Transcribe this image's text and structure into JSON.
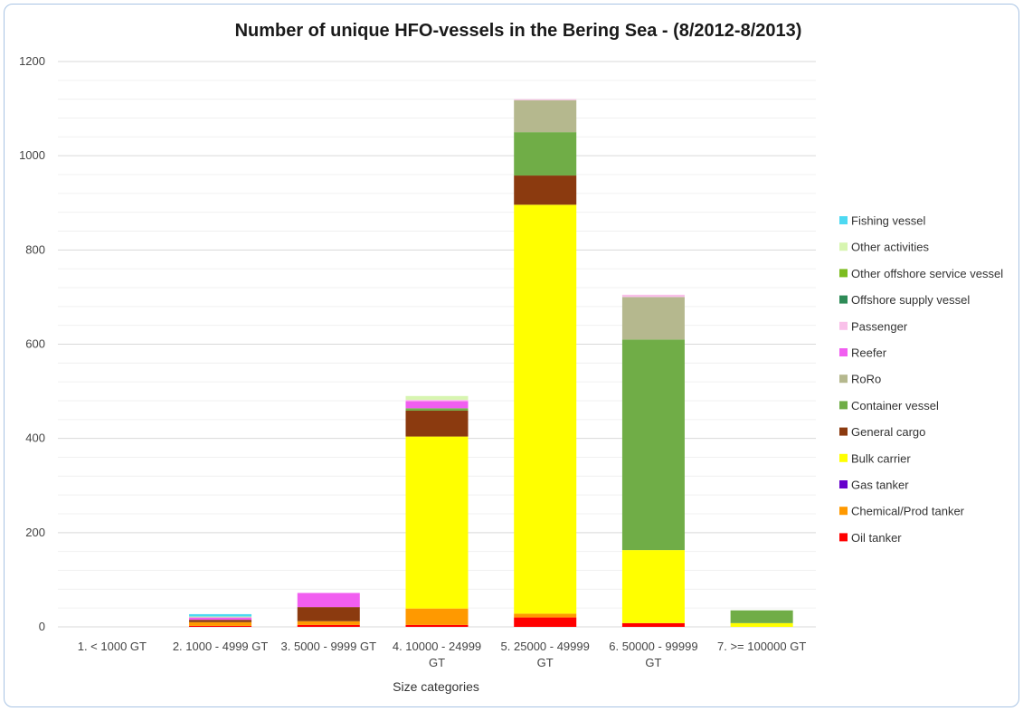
{
  "chart_data": {
    "type": "bar",
    "stacked": true,
    "title": "Number of unique HFO-vessels in the Bering Sea - (8/2012-8/2013)",
    "xlabel": "Size categories",
    "ylabel": "",
    "ylim": [
      0,
      1200
    ],
    "yticks": [
      0,
      200,
      400,
      600,
      800,
      1000,
      1200
    ],
    "grid": true,
    "legend_position": "right",
    "categories": [
      [
        "1. < 1000 GT"
      ],
      [
        "2. 1000 - 4999 GT"
      ],
      [
        "3. 5000 - 9999 GT"
      ],
      [
        "4. 10000 - 24999",
        "GT"
      ],
      [
        "5. 25000 - 49999",
        "GT"
      ],
      [
        "6. 50000 - 99999",
        "GT"
      ],
      [
        "7. >= 100000 GT"
      ]
    ],
    "series": [
      {
        "name": "Oil tanker",
        "color": "#ff0000",
        "values": [
          0,
          2,
          4,
          4,
          20,
          8,
          0
        ]
      },
      {
        "name": "Chemical/Prod tanker",
        "color": "#ff9900",
        "values": [
          0,
          8,
          8,
          35,
          8,
          0,
          0
        ]
      },
      {
        "name": "Gas tanker",
        "color": "#6600cc",
        "values": [
          0,
          0,
          0,
          0,
          0,
          0,
          0
        ]
      },
      {
        "name": "Bulk carrier",
        "color": "#ffff00",
        "values": [
          0,
          0,
          0,
          365,
          868,
          155,
          8
        ]
      },
      {
        "name": "General cargo",
        "color": "#8b3a0f",
        "values": [
          0,
          5,
          30,
          55,
          62,
          0,
          0
        ]
      },
      {
        "name": "Container vessel",
        "color": "#70ad47",
        "values": [
          0,
          0,
          0,
          5,
          92,
          447,
          27
        ]
      },
      {
        "name": "RoRo",
        "color": "#b5b88e",
        "values": [
          0,
          0,
          0,
          0,
          68,
          90,
          0
        ]
      },
      {
        "name": "Reefer",
        "color": "#f15ef0",
        "values": [
          0,
          5,
          30,
          15,
          0,
          0,
          0
        ]
      },
      {
        "name": "Passenger",
        "color": "#f9c0e9",
        "values": [
          0,
          0,
          0,
          3,
          2,
          5,
          0
        ]
      },
      {
        "name": "Offshore supply vessel",
        "color": "#2e8b57",
        "values": [
          0,
          0,
          0,
          0,
          0,
          0,
          0
        ]
      },
      {
        "name": "Other offshore service vessel",
        "color": "#7cbc1f",
        "values": [
          0,
          0,
          0,
          0,
          0,
          0,
          0
        ]
      },
      {
        "name": "Other activities",
        "color": "#d7f5b0",
        "values": [
          0,
          2,
          0,
          8,
          0,
          0,
          0
        ]
      },
      {
        "name": "Fishing vessel",
        "color": "#4dd9f2",
        "values": [
          0,
          5,
          0,
          0,
          0,
          0,
          0
        ]
      }
    ],
    "legend_order": [
      "Fishing vessel",
      "Other activities",
      "Other offshore service vessel",
      "Offshore supply vessel",
      "Passenger",
      "Reefer",
      "RoRo",
      "Container vessel",
      "General cargo",
      "Bulk carrier",
      "Gas tanker",
      "Chemical/Prod tanker",
      "Oil tanker"
    ]
  }
}
